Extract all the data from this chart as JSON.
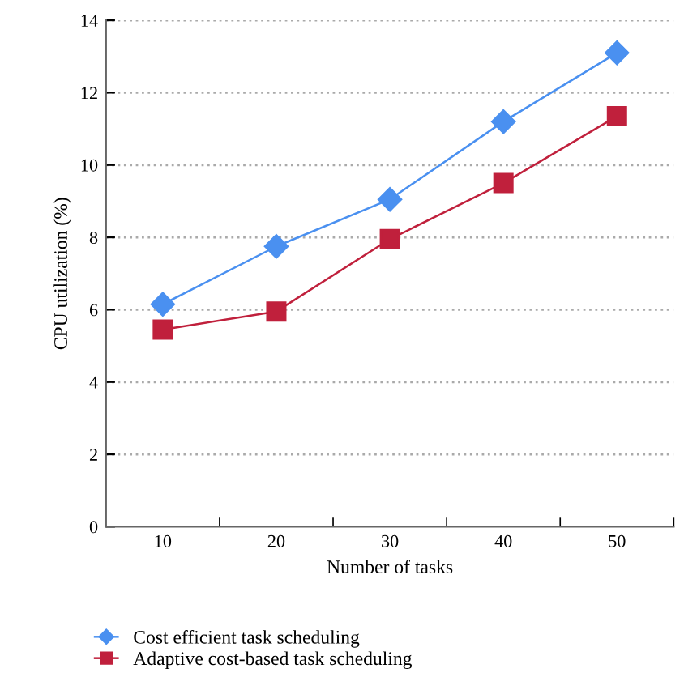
{
  "chart_data": {
    "type": "line",
    "xlabel": "Number of tasks",
    "ylabel": "CPU utilization (%)",
    "categories": [
      "10",
      "20",
      "30",
      "40",
      "50"
    ],
    "series": [
      {
        "name": "Cost efficient task scheduling",
        "color": "#4a90f0",
        "marker": "diamond",
        "values": [
          6.15,
          7.75,
          9.05,
          11.2,
          13.1
        ]
      },
      {
        "name": "Adaptive cost-based task scheduling",
        "color": "#c0203c",
        "marker": "square",
        "values": [
          5.45,
          5.95,
          7.95,
          9.5,
          11.35
        ]
      }
    ],
    "ylim": [
      0,
      14
    ],
    "yticks": [
      0,
      2,
      4,
      6,
      8,
      10,
      12,
      14
    ],
    "grid": "y",
    "legend": "bottom",
    "line_style": "solid"
  }
}
